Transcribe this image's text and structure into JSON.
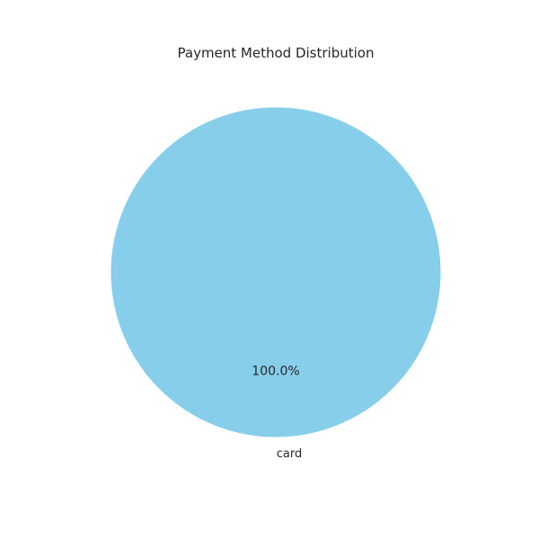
{
  "chart_data": {
    "type": "pie",
    "title": "Payment Method Distribution",
    "categories": [
      "card"
    ],
    "values": [
      100.0
    ],
    "percent_labels": [
      "100.0%"
    ],
    "colors": [
      "#87CEEB"
    ]
  }
}
